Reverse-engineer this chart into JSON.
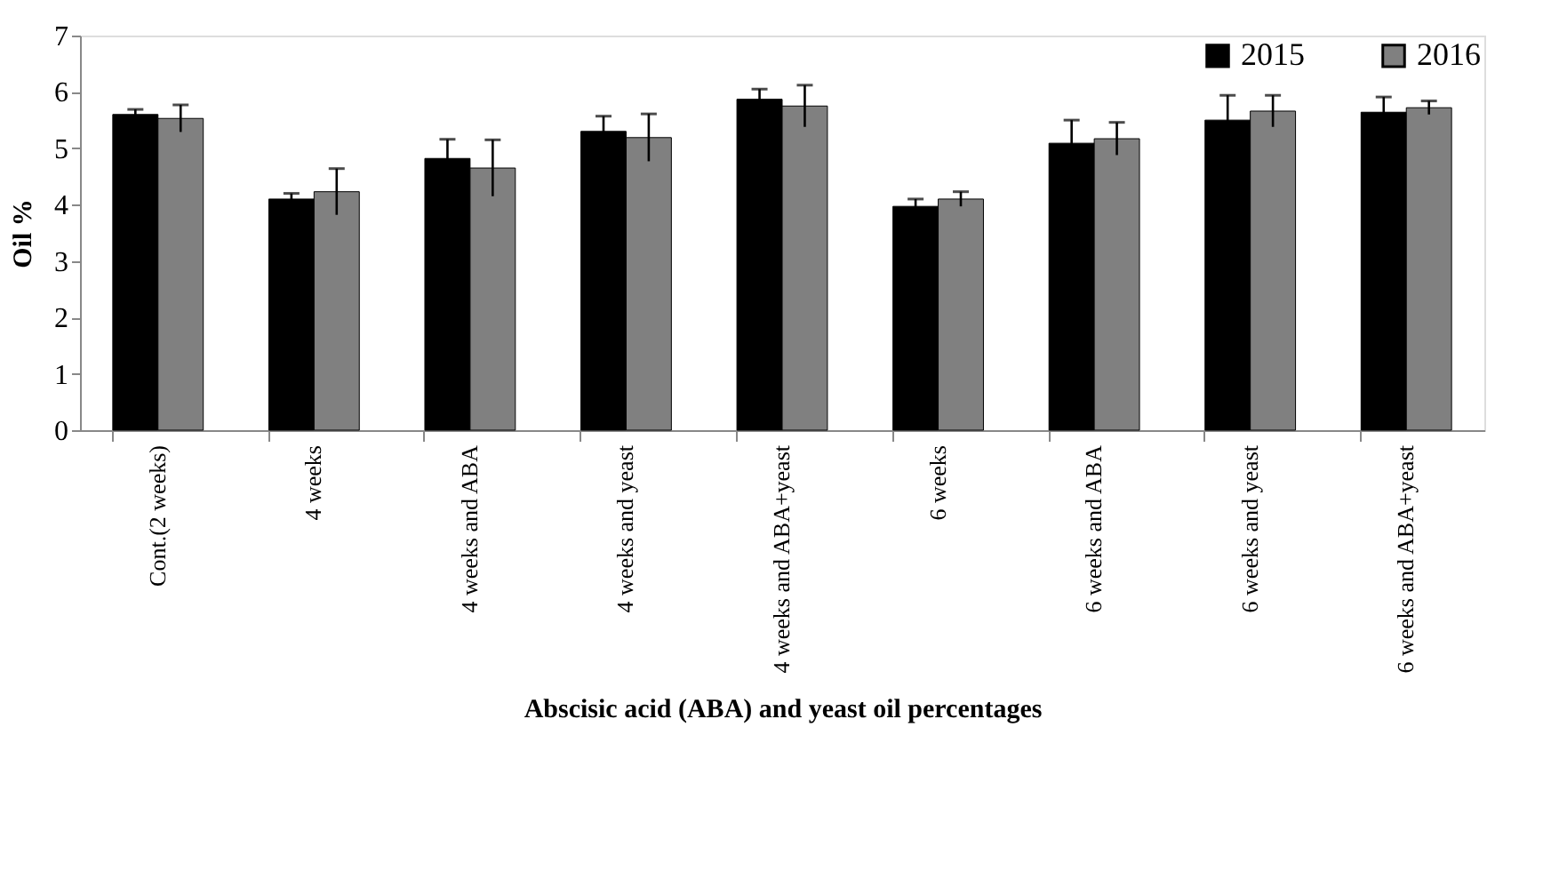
{
  "chart_data": {
    "type": "bar",
    "xlabel": "Abscisic acid (ABA) and yeast oil percentages",
    "ylabel": "Oil %",
    "categories": [
      "Cont.(2 weeks)",
      "4 weeks",
      "4 weeks and ABA",
      "4 weeks and yeast",
      "4 weeks and ABA+yeast",
      "6 weeks",
      "6 weeks and ABA",
      "6 weeks and yeast",
      "6 weeks and ABA+yeast"
    ],
    "series": [
      {
        "name": "2015",
        "color": "#000000",
        "values": [
          5.6,
          4.1,
          4.82,
          5.3,
          5.87,
          3.97,
          5.09,
          5.5,
          5.64
        ],
        "errors": [
          0.09,
          0.1,
          0.34,
          0.27,
          0.18,
          0.13,
          0.41,
          0.44,
          0.27
        ]
      },
      {
        "name": "2016",
        "color": "#808080",
        "values": [
          5.53,
          4.23,
          4.65,
          5.19,
          5.75,
          4.1,
          5.17,
          5.66,
          5.72
        ],
        "errors": [
          0.24,
          0.41,
          0.5,
          0.42,
          0.37,
          0.13,
          0.29,
          0.28,
          0.12
        ]
      }
    ],
    "ylim": [
      0,
      7
    ],
    "yticks": [
      0,
      1,
      2,
      3,
      4,
      5,
      6,
      7
    ],
    "grid": false,
    "legend": "top right"
  }
}
